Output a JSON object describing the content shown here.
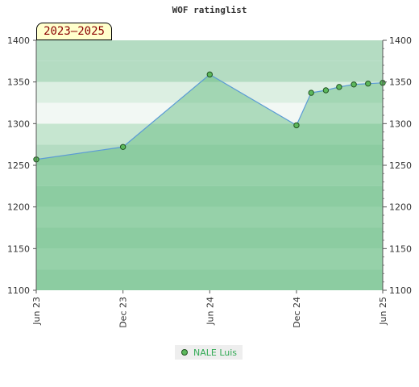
{
  "chart_data": {
    "type": "area",
    "title": "WOF ratinglist",
    "period_badge": "2023–2025",
    "x_ticks": [
      "Jun 23",
      "Dec 23",
      "Jun 24",
      "Dec 24",
      "Jun 25"
    ],
    "xlim": [
      "2023-06-01",
      "2025-06-01"
    ],
    "ylim": [
      1100,
      1400
    ],
    "y_ticks": [
      1100,
      1150,
      1200,
      1250,
      1300,
      1350,
      1400
    ],
    "y_ticks_right": true,
    "grid": "horizontal bands",
    "legend_position": "bottom-center",
    "series": [
      {
        "name": "NALE Luis",
        "points": [
          {
            "x": "2023-06-01",
            "y": 1257
          },
          {
            "x": "2023-12-01",
            "y": 1272
          },
          {
            "x": "2024-06-01",
            "y": 1359
          },
          {
            "x": "2024-12-01",
            "y": 1298
          },
          {
            "x": "2025-01-01",
            "y": 1337
          },
          {
            "x": "2025-02-01",
            "y": 1340
          },
          {
            "x": "2025-03-01",
            "y": 1344
          },
          {
            "x": "2025-04-01",
            "y": 1347
          },
          {
            "x": "2025-05-01",
            "y": 1348
          },
          {
            "x": "2025-06-01",
            "y": 1349
          }
        ]
      }
    ]
  },
  "colors": {
    "line": "#5b9bd5",
    "area_fill": "#5cb87a",
    "marker_fill": "#5cb85c",
    "marker_stroke": "#225522",
    "badge_text": "#8b0000",
    "legend_text": "#33aa55"
  }
}
